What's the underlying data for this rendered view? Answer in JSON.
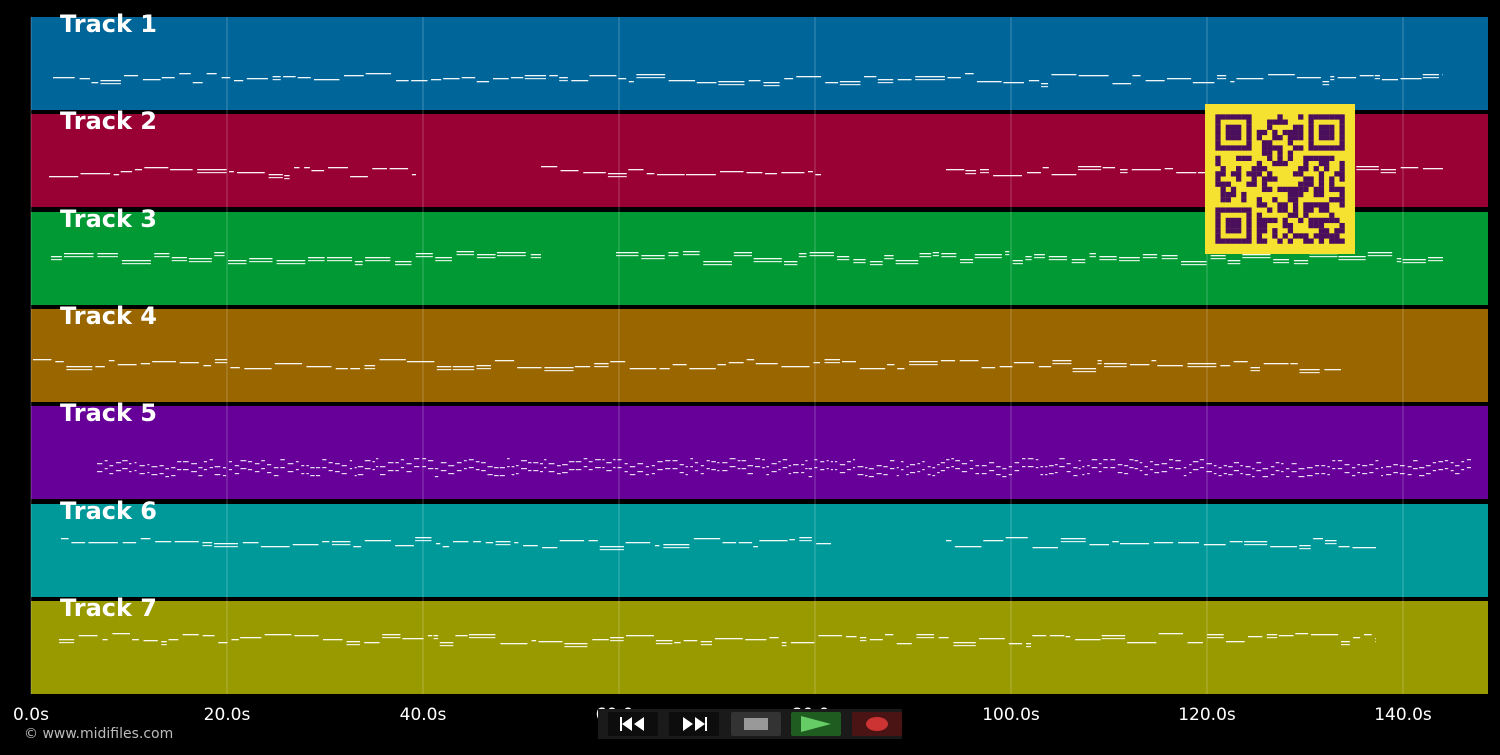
{
  "tracks": [
    {
      "label": "Track 1",
      "color": "#006699"
    },
    {
      "label": "Track 2",
      "color": "#990033"
    },
    {
      "label": "Track 3",
      "color": "#009933"
    },
    {
      "label": "Track 4",
      "color": "#996600"
    },
    {
      "label": "Track 5",
      "color": "#660099"
    },
    {
      "label": "Track 6",
      "color": "#009999"
    },
    {
      "label": "Track 7",
      "color": "#999900"
    }
  ],
  "timeline": {
    "ticks": [
      "0.0s",
      "20.0s",
      "40.0s",
      "60.0s",
      "80.0s",
      "100.0s",
      "120.0s",
      "140.0s"
    ]
  },
  "copyright": "© www.midifiles.com",
  "transport": {
    "rewind": "rewind-icon",
    "fast_forward": "fast-forward-icon",
    "stop": "stop-icon",
    "play": "play-icon",
    "record": "record-icon",
    "play_color": "#66cc66",
    "record_color": "#cc3333"
  },
  "qr_colors": {
    "fg": "#4a0f5c",
    "bg": "#f5e130"
  }
}
